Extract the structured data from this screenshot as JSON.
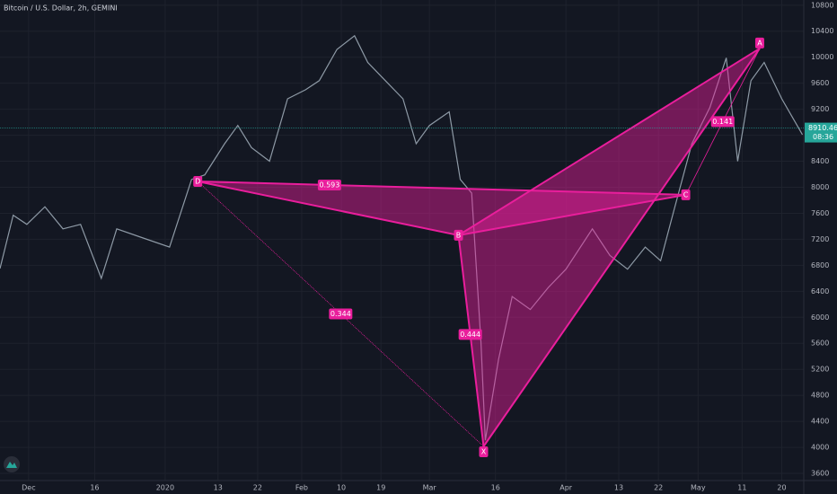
{
  "chart_data": {
    "type": "line",
    "title": "Bitcoin / U.S. Dollar, 2h, GEMINI",
    "series": [
      {
        "name": "BTCUSD",
        "color": "#8e9aa6",
        "x": [
          -6.5,
          -3.5,
          -0.4,
          3.7,
          7.8,
          11.8,
          16.5,
          20,
          26,
          32,
          37,
          40,
          44.5,
          47.5,
          50.6,
          54.7,
          58.8,
          62.9,
          66,
          70,
          74,
          77,
          81,
          85,
          88,
          91,
          95.5,
          98,
          100.6,
          102.7,
          103.7,
          106.7,
          109.8,
          113.9,
          118,
          122,
          128,
          132,
          136,
          140,
          143.5,
          146.5,
          150.6,
          154.7,
          158.4,
          161,
          164,
          167,
          171,
          175.7
        ],
        "values": [
          6750,
          7570,
          7430,
          7700,
          7360,
          7430,
          6600,
          7360,
          7220,
          7080,
          8120,
          8190,
          8670,
          8950,
          8610,
          8400,
          9360,
          9500,
          9640,
          10120,
          10330,
          9920,
          9640,
          9360,
          8670,
          8950,
          9160,
          8120,
          7910,
          5630,
          4110,
          5350,
          6320,
          6120,
          6460,
          6740,
          7360,
          6950,
          6740,
          7080,
          6870,
          7640,
          8670,
          9230,
          9990,
          8400,
          9640,
          9920,
          9360,
          8810
        ]
      }
    ],
    "xlim": [
      -6.5,
      176
    ],
    "ylim": [
      3490,
      10880
    ],
    "xticks": [
      {
        "value": 0,
        "label": "Dec"
      },
      {
        "value": 15,
        "label": "16"
      },
      {
        "value": 31,
        "label": "2020"
      },
      {
        "value": 43,
        "label": "13"
      },
      {
        "value": 52,
        "label": "22"
      },
      {
        "value": 62,
        "label": "Feb"
      },
      {
        "value": 71,
        "label": "10"
      },
      {
        "value": 80,
        "label": "19"
      },
      {
        "value": 91,
        "label": "Mar"
      },
      {
        "value": 106,
        "label": "16"
      },
      {
        "value": 122,
        "label": "Apr"
      },
      {
        "value": 134,
        "label": "13"
      },
      {
        "value": 143,
        "label": "22"
      },
      {
        "value": 152,
        "label": "May"
      },
      {
        "value": 162,
        "label": "11"
      },
      {
        "value": 171,
        "label": "20"
      }
    ],
    "yticks": [
      3600,
      4000,
      4400,
      4800,
      5200,
      5600,
      6000,
      6400,
      6800,
      7200,
      7600,
      8000,
      8400,
      8800,
      9200,
      9600,
      10000,
      10400,
      10800
    ],
    "grid": true,
    "last_price": 8910.46,
    "countdown": "08:36",
    "pattern": {
      "color": "#e91e9c",
      "points": [
        {
          "label": "X",
          "x": 103.3,
          "y": 4015
        },
        {
          "label": "A",
          "x": 166,
          "y": 10135
        },
        {
          "label": "B",
          "x": 97.6,
          "y": 7262
        },
        {
          "label": "C",
          "x": 149.2,
          "y": 7884
        },
        {
          "label": "D",
          "x": 38.4,
          "y": 8090
        }
      ],
      "ratios": [
        0.593,
        0.344,
        0.444,
        0.141
      ]
    }
  }
}
